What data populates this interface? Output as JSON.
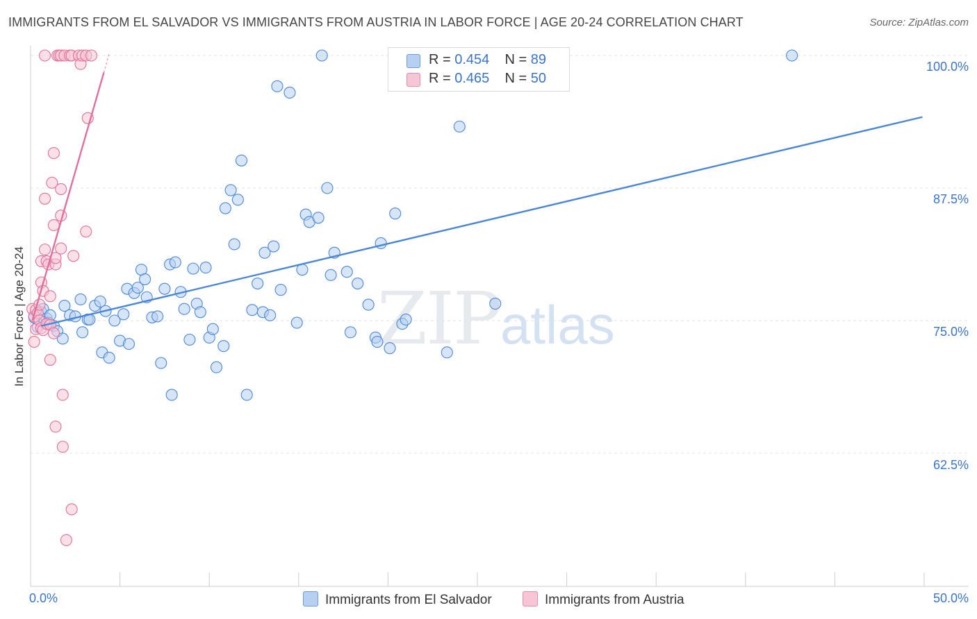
{
  "title": "IMMIGRANTS FROM EL SALVADOR VS IMMIGRANTS FROM AUSTRIA IN LABOR FORCE | AGE 20-24 CORRELATION CHART",
  "source": "Source: ZipAtlas.com",
  "watermark": {
    "zip": "ZIP",
    "atlas": "atlas"
  },
  "legend": {
    "rows": [
      {
        "r_label": "R =",
        "r_value": "0.454",
        "n_label": "N =",
        "n_value": "89",
        "color": "#a9c8f0"
      },
      {
        "r_label": "R =",
        "r_value": "0.465",
        "n_label": "N =",
        "n_value": "50",
        "color": "#f6b8cb"
      }
    ]
  },
  "axis": {
    "ylabel": "In Labor Force | Age 20-24",
    "y_ticks": [
      "100.0%",
      "87.5%",
      "75.0%",
      "62.5%"
    ],
    "x_left": "0.0%",
    "x_right": "50.0%"
  },
  "bottom_legend": {
    "el_salvador": "Immigrants from El Salvador",
    "austria": "Immigrants from Austria"
  },
  "chart_data": {
    "type": "scatter",
    "title": "IMMIGRANTS FROM EL SALVADOR VS IMMIGRANTS FROM AUSTRIA IN LABOR FORCE | AGE 20-24 CORRELATION CHART",
    "xlabel": "",
    "ylabel": "In Labor Force | Age 20-24",
    "xlim": [
      0,
      50
    ],
    "ylim": [
      52,
      101
    ],
    "y_ticks": [
      62.5,
      75.0,
      87.5,
      100.0
    ],
    "grid": true,
    "legend_position": "top-center",
    "series": [
      {
        "name": "Immigrants from El Salvador",
        "color": "#4a86d8",
        "fill": "#b7d0f2",
        "trend": {
          "x": [
            0.6,
            49.9
          ],
          "y": [
            74.5,
            94.2
          ]
        },
        "points": [
          [
            0.2,
            75.3
          ],
          [
            0.4,
            74.4
          ],
          [
            0.6,
            75.8
          ],
          [
            0.7,
            76.1
          ],
          [
            0.8,
            74.9
          ],
          [
            0.9,
            75.2
          ],
          [
            1.0,
            74.8
          ],
          [
            1.1,
            75.5
          ],
          [
            1.3,
            74.5
          ],
          [
            1.5,
            74.0
          ],
          [
            1.8,
            73.3
          ],
          [
            1.9,
            76.4
          ],
          [
            2.2,
            75.5
          ],
          [
            2.5,
            75.4
          ],
          [
            2.8,
            77.0
          ],
          [
            2.9,
            73.9
          ],
          [
            3.2,
            75.1
          ],
          [
            3.3,
            75.1
          ],
          [
            3.6,
            76.4
          ],
          [
            3.9,
            76.8
          ],
          [
            4.0,
            72.0
          ],
          [
            4.2,
            75.9
          ],
          [
            4.4,
            71.5
          ],
          [
            4.7,
            75.0
          ],
          [
            5.0,
            73.1
          ],
          [
            5.2,
            75.6
          ],
          [
            5.4,
            78.0
          ],
          [
            5.5,
            72.8
          ],
          [
            5.8,
            77.6
          ],
          [
            6.0,
            78.1
          ],
          [
            6.2,
            79.8
          ],
          [
            6.4,
            78.9
          ],
          [
            6.5,
            77.2
          ],
          [
            6.8,
            75.3
          ],
          [
            7.1,
            75.4
          ],
          [
            7.3,
            71.0
          ],
          [
            7.5,
            78.0
          ],
          [
            7.8,
            80.3
          ],
          [
            7.9,
            68.0
          ],
          [
            8.1,
            80.5
          ],
          [
            8.4,
            77.7
          ],
          [
            8.6,
            76.1
          ],
          [
            8.9,
            73.2
          ],
          [
            9.1,
            79.9
          ],
          [
            9.3,
            76.6
          ],
          [
            9.5,
            75.8
          ],
          [
            9.8,
            80.0
          ],
          [
            10.0,
            73.4
          ],
          [
            10.2,
            74.2
          ],
          [
            10.4,
            70.6
          ],
          [
            10.8,
            72.6
          ],
          [
            10.9,
            85.6
          ],
          [
            11.2,
            87.3
          ],
          [
            11.4,
            82.2
          ],
          [
            11.6,
            86.4
          ],
          [
            11.8,
            90.1
          ],
          [
            12.1,
            68.0
          ],
          [
            12.4,
            76.0
          ],
          [
            12.7,
            78.5
          ],
          [
            13.0,
            75.8
          ],
          [
            13.1,
            81.4
          ],
          [
            13.4,
            75.5
          ],
          [
            13.6,
            82.0
          ],
          [
            13.8,
            97.1
          ],
          [
            14.0,
            77.9
          ],
          [
            14.5,
            96.5
          ],
          [
            14.9,
            74.8
          ],
          [
            15.2,
            79.8
          ],
          [
            15.4,
            85.0
          ],
          [
            15.6,
            84.3
          ],
          [
            16.1,
            84.7
          ],
          [
            16.3,
            100.0
          ],
          [
            16.6,
            87.5
          ],
          [
            16.8,
            79.3
          ],
          [
            17.0,
            81.4
          ],
          [
            17.7,
            79.6
          ],
          [
            17.9,
            73.9
          ],
          [
            18.3,
            78.5
          ],
          [
            18.9,
            76.5
          ],
          [
            19.3,
            73.4
          ],
          [
            19.4,
            73.0
          ],
          [
            19.6,
            82.3
          ],
          [
            20.1,
            72.4
          ],
          [
            20.4,
            85.1
          ],
          [
            20.8,
            74.7
          ],
          [
            21.0,
            75.1
          ],
          [
            23.3,
            72.0
          ],
          [
            24.0,
            93.3
          ],
          [
            26.0,
            76.6
          ],
          [
            42.6,
            100.0
          ]
        ]
      },
      {
        "name": "Immigrants from Austria",
        "color": "#e0709a",
        "fill": "#f7c6d6",
        "trend": {
          "x": [
            0.1,
            4.1
          ],
          "y": [
            75.0,
            98.4
          ]
        },
        "trend_dashed": {
          "x": [
            4.1,
            4.4
          ],
          "y": [
            98.4,
            100.2
          ]
        },
        "points": [
          [
            0.1,
            76.1
          ],
          [
            0.2,
            75.4
          ],
          [
            0.2,
            73.0
          ],
          [
            0.3,
            74.2
          ],
          [
            0.3,
            76.0
          ],
          [
            0.4,
            75.7
          ],
          [
            0.5,
            75.0
          ],
          [
            0.5,
            76.5
          ],
          [
            0.6,
            74.3
          ],
          [
            0.6,
            78.6
          ],
          [
            0.6,
            80.6
          ],
          [
            0.7,
            77.8
          ],
          [
            0.7,
            74.1
          ],
          [
            0.8,
            81.7
          ],
          [
            0.8,
            86.5
          ],
          [
            0.8,
            100.0
          ],
          [
            0.9,
            74.7
          ],
          [
            0.9,
            80.6
          ],
          [
            1.0,
            80.3
          ],
          [
            1.1,
            74.6
          ],
          [
            1.1,
            71.3
          ],
          [
            1.1,
            77.3
          ],
          [
            1.2,
            88.0
          ],
          [
            1.3,
            73.8
          ],
          [
            1.3,
            84.0
          ],
          [
            1.4,
            80.3
          ],
          [
            1.4,
            80.9
          ],
          [
            1.4,
            65.0
          ],
          [
            1.5,
            100.0
          ],
          [
            1.3,
            90.8
          ],
          [
            1.6,
            100.0
          ],
          [
            1.7,
            84.9
          ],
          [
            1.7,
            81.8
          ],
          [
            1.7,
            87.4
          ],
          [
            1.7,
            100.0
          ],
          [
            1.8,
            68.0
          ],
          [
            1.8,
            63.1
          ],
          [
            1.9,
            100.0
          ],
          [
            2.0,
            54.3
          ],
          [
            2.2,
            100.0
          ],
          [
            2.3,
            100.0
          ],
          [
            2.3,
            57.2
          ],
          [
            2.4,
            81.1
          ],
          [
            2.7,
            100.0
          ],
          [
            2.8,
            99.2
          ],
          [
            2.9,
            100.0
          ],
          [
            3.1,
            100.0
          ],
          [
            3.1,
            83.4
          ],
          [
            3.2,
            94.1
          ],
          [
            3.4,
            100.0
          ]
        ]
      }
    ]
  }
}
